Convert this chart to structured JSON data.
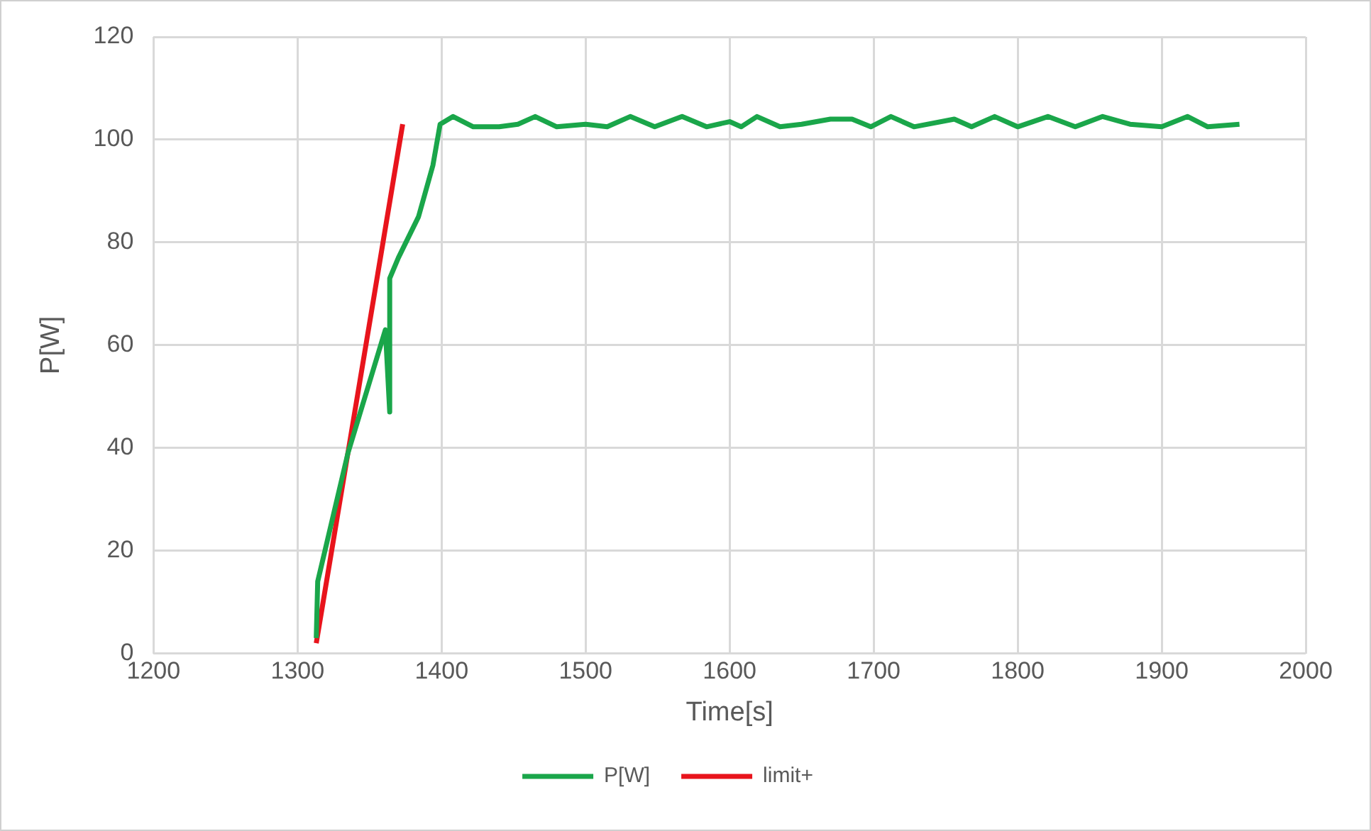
{
  "chart_data": {
    "type": "line",
    "xlabel": "Time[s]",
    "ylabel": "P[W]",
    "xlim": [
      1200,
      2000
    ],
    "xticks": [
      1200,
      1300,
      1400,
      1500,
      1600,
      1700,
      1800,
      1900,
      2000
    ],
    "ylim": [
      0,
      120
    ],
    "yticks": [
      0,
      20,
      40,
      60,
      80,
      100,
      120
    ],
    "grid": true,
    "legend": "bottom",
    "marker": "none",
    "line_style": "solid",
    "series": [
      {
        "name": "P[W]",
        "color": "#1aa64a",
        "x": [
          1313,
          1314,
          1335,
          1361,
          1364,
          1364,
          1370,
          1384,
          1394,
          1399,
          1408,
          1422,
          1440,
          1453,
          1465,
          1480,
          1500,
          1515,
          1531,
          1548,
          1567,
          1584,
          1600,
          1608,
          1619,
          1635,
          1650,
          1670,
          1685,
          1698,
          1712,
          1728,
          1756,
          1768,
          1784,
          1800,
          1821,
          1840,
          1859,
          1878,
          1900,
          1918,
          1932,
          1954
        ],
        "values": [
          3,
          14,
          39,
          63,
          47,
          73,
          77,
          85,
          95,
          103,
          104.5,
          102.5,
          102.5,
          103,
          104.5,
          102.5,
          103,
          102.5,
          104.5,
          102.5,
          104.5,
          102.5,
          103.5,
          102.5,
          104.5,
          102.5,
          103,
          104,
          104,
          102.5,
          104.5,
          102.5,
          104,
          102.5,
          104.5,
          102.5,
          104.5,
          102.5,
          104.5,
          103,
          102.5,
          104.5,
          102.5,
          103
        ]
      },
      {
        "name": "limit+",
        "color": "#e8141c",
        "x": [
          1313,
          1373
        ],
        "values": [
          2,
          103
        ]
      }
    ]
  }
}
